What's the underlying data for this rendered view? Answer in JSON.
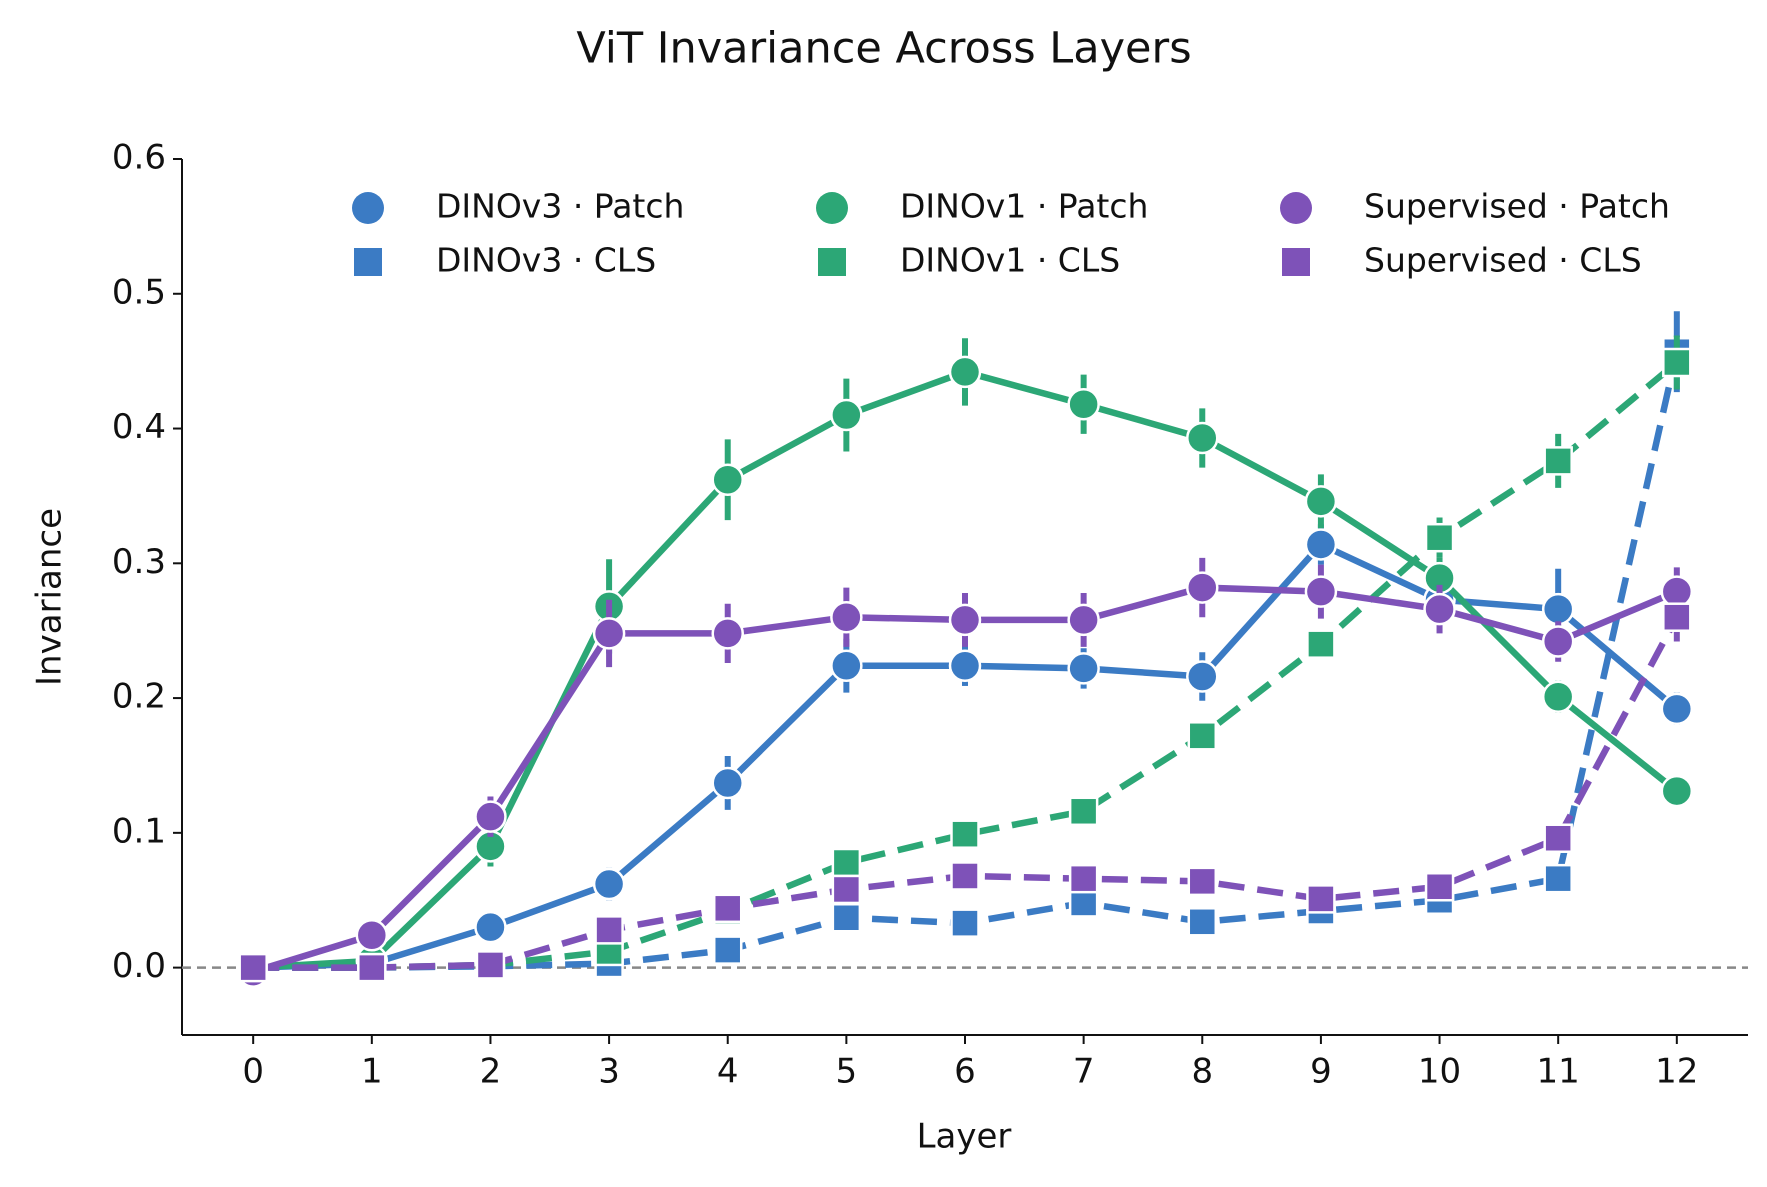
{
  "chart_data": {
    "type": "line",
    "title": "ViT Invariance Across Layers",
    "x_label": "Layer",
    "y_label": "Invariance",
    "x": [
      0,
      1,
      2,
      3,
      4,
      5,
      6,
      7,
      8,
      9,
      10,
      11,
      12
    ],
    "xlim": [
      -0.6,
      12.6
    ],
    "xticks": [
      0,
      1,
      2,
      3,
      4,
      5,
      6,
      7,
      8,
      9,
      10,
      11,
      12
    ],
    "ylim": [
      -0.05,
      0.6
    ],
    "yticks": [
      {
        "value": 0,
        "label": "0.0"
      },
      0.1,
      0.2,
      0.3,
      0.4,
      0.5,
      0.6
    ],
    "reference_line": 0,
    "legend": "upper center",
    "grid": false,
    "series": [
      {
        "name": "DINOv3 · Patch",
        "color": "#3b7bc4",
        "marker": "circle",
        "linestyle": "solid",
        "values": [
          0,
          0.003,
          0.03,
          0.062,
          0.137,
          0.224,
          0.224,
          0.222,
          0.216,
          0.314,
          0.273,
          0.266,
          0.192
        ],
        "errors": [
          0,
          0.002,
          0.008,
          0.012,
          0.02,
          0.02,
          0.015,
          0.015,
          0.018,
          0.015,
          0.012,
          0.03,
          0.012
        ]
      },
      {
        "name": "DINOv3 · CLS",
        "color": "#3b7bc4",
        "marker": "square",
        "linestyle": "dashed",
        "values": [
          0,
          0,
          0.001,
          0.003,
          0.013,
          0.037,
          0.033,
          0.048,
          0.034,
          0.042,
          0.05,
          0.066,
          0.457
        ],
        "errors": [
          0,
          0,
          0.002,
          0.004,
          0.006,
          0.006,
          0.006,
          0.006,
          0.005,
          0.005,
          0.008,
          0.01,
          0.03
        ]
      },
      {
        "name": "DINOv1 · Patch",
        "color": "#2ca776",
        "marker": "circle",
        "linestyle": "solid",
        "values": [
          0,
          0.005,
          0.09,
          0.268,
          0.362,
          0.41,
          0.442,
          0.418,
          0.393,
          0.346,
          0.289,
          0.201,
          0.131
        ],
        "errors": [
          0,
          0.004,
          0.015,
          0.035,
          0.03,
          0.027,
          0.025,
          0.022,
          0.022,
          0.02,
          0.015,
          0.012,
          0.008
        ]
      },
      {
        "name": "DINOv1 · CLS",
        "color": "#2ca776",
        "marker": "square",
        "linestyle": "dashed",
        "values": [
          0,
          0,
          0.002,
          0.012,
          0.042,
          0.078,
          0.099,
          0.116,
          0.172,
          0.24,
          0.319,
          0.376,
          0.449
        ],
        "errors": [
          0,
          0,
          0.002,
          0.006,
          0.006,
          0.008,
          0.008,
          0.006,
          0.01,
          0.01,
          0.015,
          0.02,
          0.02
        ]
      },
      {
        "name": "Supervised · Patch",
        "color": "#7e52b8",
        "marker": "circle",
        "linestyle": "solid",
        "values": [
          -0.003,
          0.024,
          0.112,
          0.248,
          0.248,
          0.26,
          0.258,
          0.258,
          0.282,
          0.279,
          0.266,
          0.242,
          0.279
        ],
        "errors": [
          0,
          0.006,
          0.015,
          0.025,
          0.022,
          0.022,
          0.02,
          0.02,
          0.022,
          0.02,
          0.018,
          0.015,
          0.018
        ]
      },
      {
        "name": "Supervised · CLS",
        "color": "#7e52b8",
        "marker": "square",
        "linestyle": "dashed",
        "values": [
          0,
          0,
          0.002,
          0.028,
          0.044,
          0.058,
          0.068,
          0.066,
          0.064,
          0.051,
          0.06,
          0.096,
          0.26
        ],
        "errors": [
          0,
          0,
          0.002,
          0.008,
          0.006,
          0.006,
          0.006,
          0.006,
          0.006,
          0.005,
          0.006,
          0.01,
          0.018
        ]
      }
    ]
  }
}
